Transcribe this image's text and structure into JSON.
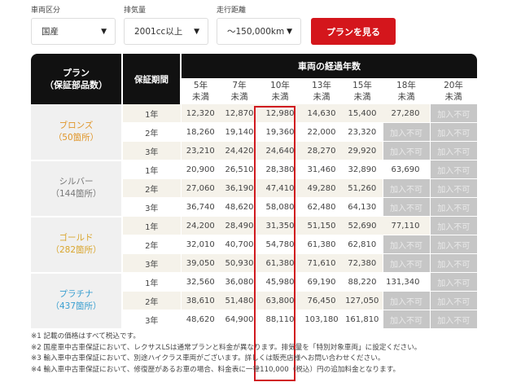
{
  "filters": [
    {
      "label": "車両区分",
      "value": "国産",
      "icon": "triangle-down"
    },
    {
      "label": "排気量",
      "value": "2001cc以上",
      "icon": "triangle-down"
    },
    {
      "label": "走行距離",
      "value": "～150,000km",
      "icon": "triangle-down"
    }
  ],
  "cta": {
    "label": "プランを見る",
    "color": "#d4161c"
  },
  "table": {
    "header": {
      "plan_line1": "プラン",
      "plan_line2": "（保証部品数）",
      "period": "保証期間",
      "years_group": "車両の経過年数",
      "years": [
        {
          "line1": "5年",
          "line2": "未満"
        },
        {
          "line1": "7年",
          "line2": "未満"
        },
        {
          "line1": "10年",
          "line2": "未満"
        },
        {
          "line1": "13年",
          "line2": "未満"
        },
        {
          "line1": "15年",
          "line2": "未満"
        },
        {
          "line1": "18年",
          "line2": "未満"
        },
        {
          "line1": "20年",
          "line2": "未満"
        }
      ]
    },
    "not_available_label": "加入不可",
    "highlight_column": "10年未満",
    "plans": [
      {
        "name": "ブロンズ",
        "parts": "（50箇所）",
        "color": "#e0962a",
        "rows": [
          {
            "period": "1年",
            "values": [
              "12,320",
              "12,870",
              "12,980",
              "14,630",
              "15,400",
              "27,280",
              "加入不可"
            ]
          },
          {
            "period": "2年",
            "values": [
              "18,260",
              "19,140",
              "19,360",
              "22,000",
              "23,320",
              "加入不可",
              "加入不可"
            ]
          },
          {
            "period": "3年",
            "values": [
              "23,210",
              "24,420",
              "24,640",
              "28,270",
              "29,920",
              "加入不可",
              "加入不可"
            ]
          }
        ]
      },
      {
        "name": "シルバー",
        "parts": "（144箇所）",
        "color": "#777777",
        "rows": [
          {
            "period": "1年",
            "values": [
              "20,900",
              "26,510",
              "28,380",
              "31,460",
              "32,890",
              "63,690",
              "加入不可"
            ]
          },
          {
            "period": "2年",
            "values": [
              "27,060",
              "36,190",
              "47,410",
              "49,280",
              "51,260",
              "加入不可",
              "加入不可"
            ]
          },
          {
            "period": "3年",
            "values": [
              "36,740",
              "48,620",
              "58,080",
              "62,480",
              "64,130",
              "加入不可",
              "加入不可"
            ]
          }
        ]
      },
      {
        "name": "ゴールド",
        "parts": "（282箇所）",
        "color": "#d9a62e",
        "rows": [
          {
            "period": "1年",
            "values": [
              "24,200",
              "28,490",
              "31,350",
              "51,150",
              "52,690",
              "77,110",
              "加入不可"
            ]
          },
          {
            "period": "2年",
            "values": [
              "32,010",
              "40,700",
              "54,780",
              "61,380",
              "62,810",
              "加入不可",
              "加入不可"
            ]
          },
          {
            "period": "3年",
            "values": [
              "39,050",
              "50,930",
              "61,380",
              "71,610",
              "72,380",
              "加入不可",
              "加入不可"
            ]
          }
        ]
      },
      {
        "name": "プラチナ",
        "parts": "（437箇所）",
        "color": "#3a9fd0",
        "rows": [
          {
            "period": "1年",
            "values": [
              "32,560",
              "36,080",
              "45,980",
              "69,190",
              "88,220",
              "131,340",
              "加入不可"
            ]
          },
          {
            "period": "2年",
            "values": [
              "38,610",
              "51,480",
              "63,800",
              "76,450",
              "127,050",
              "加入不可",
              "加入不可"
            ]
          },
          {
            "period": "3年",
            "values": [
              "48,620",
              "64,900",
              "88,110",
              "103,180",
              "161,810",
              "加入不可",
              "加入不可"
            ]
          }
        ]
      }
    ]
  },
  "notes": [
    "※1 記載の価格はすべて税込です。",
    "※2 国産車中古車保証において、レクサスLSは通常プランと料金が異なります。排気量を「特別対象車両」に設定ください。",
    "※3 輸入車中古車保証において、別途ハイクラス車両がございます。詳しくは販売店様へお問い合わせください。",
    "※4 輸入車中古車保証において、修復歴があるお車の場合、料金表に一律110,000（税込）円の追加料金となります。"
  ]
}
